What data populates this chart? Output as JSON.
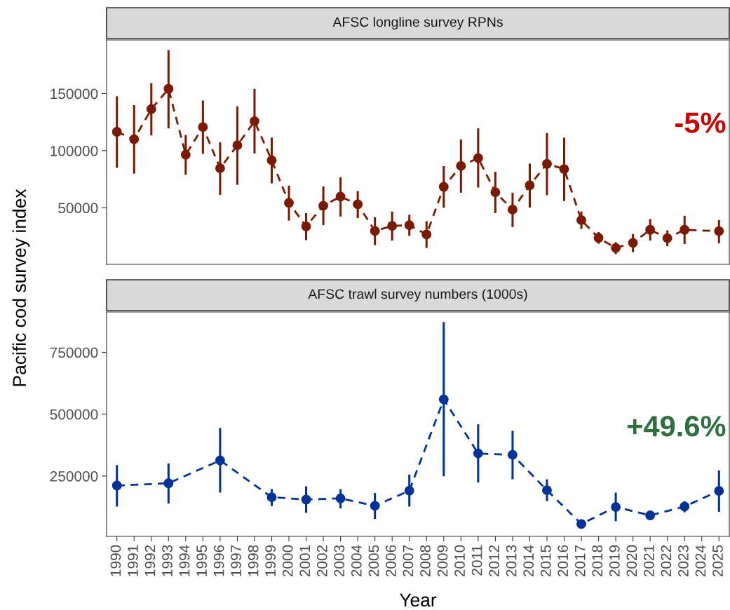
{
  "chart_data": [
    {
      "type": "line",
      "title": "AFSC longline survey RPNs",
      "ylabel": "Pacific cod survey index",
      "categories": [
        "1990",
        "1991",
        "1992",
        "1993",
        "1994",
        "1995",
        "1996",
        "1997",
        "1998",
        "1999",
        "2000",
        "2001",
        "2002",
        "2003",
        "2004",
        "2005",
        "2006",
        "2007",
        "2008",
        "2009",
        "2010",
        "2011",
        "2012",
        "2013",
        "2014",
        "2015",
        "2016",
        "2017",
        "2018",
        "2019",
        "2020",
        "2021",
        "2022",
        "2023",
        "2024",
        "2025"
      ],
      "series": [
        {
          "color": "#7b1a00",
          "values": [
            116500,
            110000,
            136400,
            154100,
            96500,
            120700,
            84600,
            104700,
            125800,
            91500,
            54300,
            33700,
            51800,
            59800,
            53000,
            29700,
            34100,
            34800,
            26600,
            68300,
            86600,
            93500,
            63600,
            48400,
            69700,
            88400,
            83900,
            39200,
            23600,
            14800,
            19300,
            30700,
            23400,
            30700,
            null,
            29500
          ],
          "errors": [
            [
              85000,
              147600
            ],
            [
              79900,
              139800
            ],
            [
              113400,
              159100
            ],
            [
              119500,
              188000
            ],
            [
              78900,
              113800
            ],
            [
              97200,
              143900
            ],
            [
              61200,
              107300
            ],
            [
              70100,
              138800
            ],
            [
              97600,
              154100
            ],
            [
              71300,
              111400
            ],
            [
              38800,
              69300
            ],
            [
              21700,
              45300
            ],
            [
              34800,
              68700
            ],
            [
              42300,
              76800
            ],
            [
              40900,
              64600
            ],
            [
              17300,
              41700
            ],
            [
              21300,
              46700
            ],
            [
              25400,
              43900
            ],
            [
              14800,
              38200
            ],
            [
              50000,
              86400
            ],
            [
              63200,
              109800
            ],
            [
              67700,
              119500
            ],
            [
              45300,
              81500
            ],
            [
              33100,
              63200
            ],
            [
              50200,
              88600
            ],
            [
              61000,
              115400
            ],
            [
              55900,
              111400
            ],
            [
              31500,
              46700
            ],
            [
              18500,
              28700
            ],
            [
              9400,
              19900
            ],
            [
              11200,
              27000
            ],
            [
              21300,
              40200
            ],
            [
              16300,
              30200
            ],
            [
              18300,
              42900
            ],
            null,
            [
              18900,
              39200
            ]
          ]
        }
      ],
      "ylim": [
        470,
        196900
      ],
      "yticks": [
        50000,
        100000,
        150000
      ],
      "tick_labels": "y",
      "grid": false,
      "marker": "circle",
      "line_style": "dashed",
      "annotations": [
        "-5%"
      ]
    },
    {
      "type": "line",
      "title": "AFSC trawl survey numbers (1000s)",
      "xlabel": "Year",
      "categories": [
        "1990",
        "1991",
        "1992",
        "1993",
        "1994",
        "1995",
        "1996",
        "1997",
        "1998",
        "1999",
        "2000",
        "2001",
        "2002",
        "2003",
        "2004",
        "2005",
        "2006",
        "2007",
        "2008",
        "2009",
        "2010",
        "2011",
        "2012",
        "2013",
        "2014",
        "2015",
        "2016",
        "2017",
        "2018",
        "2019",
        "2020",
        "2021",
        "2022",
        "2023",
        "2024",
        "2025"
      ],
      "series": [
        {
          "color": "#00339a",
          "values": [
            211400,
            null,
            null,
            220800,
            null,
            null,
            313100,
            null,
            null,
            164300,
            null,
            154900,
            null,
            159600,
            null,
            129500,
            null,
            190700,
            null,
            559800,
            null,
            341300,
            null,
            335700,
            null,
            192600,
            null,
            56000,
            null,
            124800,
            null,
            90900,
            null,
            126600,
            null,
            189700
          ],
          "errors": [
            [
              126600,
              294300
            ],
            null,
            null,
            [
              138900,
              300800
            ],
            null,
            null,
            [
              183100,
              444000
            ],
            null,
            null,
            [
              128500,
              197300
            ],
            null,
            [
              101200,
              208600
            ],
            null,
            [
              119100,
              197300
            ],
            null,
            [
              76700,
              181300
            ],
            null,
            [
              126600,
              255600
            ],
            null,
            [
              249100,
              872400
            ],
            null,
            [
              223600,
              459000
            ],
            null,
            [
              236800,
              432700
            ],
            null,
            [
              148300,
              236800
            ],
            null,
            null,
            null,
            [
              67300,
              183100
            ],
            null,
            null,
            null,
            [
              103100,
              148300
            ],
            null,
            [
              105000,
              272600
            ]
          ]
        }
      ],
      "ylim": [
        6000,
        913000
      ],
      "yticks": [
        250000,
        500000,
        750000
      ],
      "grid": false,
      "marker": "circle",
      "line_style": "dashed",
      "annotations": [
        "+49.6%"
      ]
    }
  ]
}
